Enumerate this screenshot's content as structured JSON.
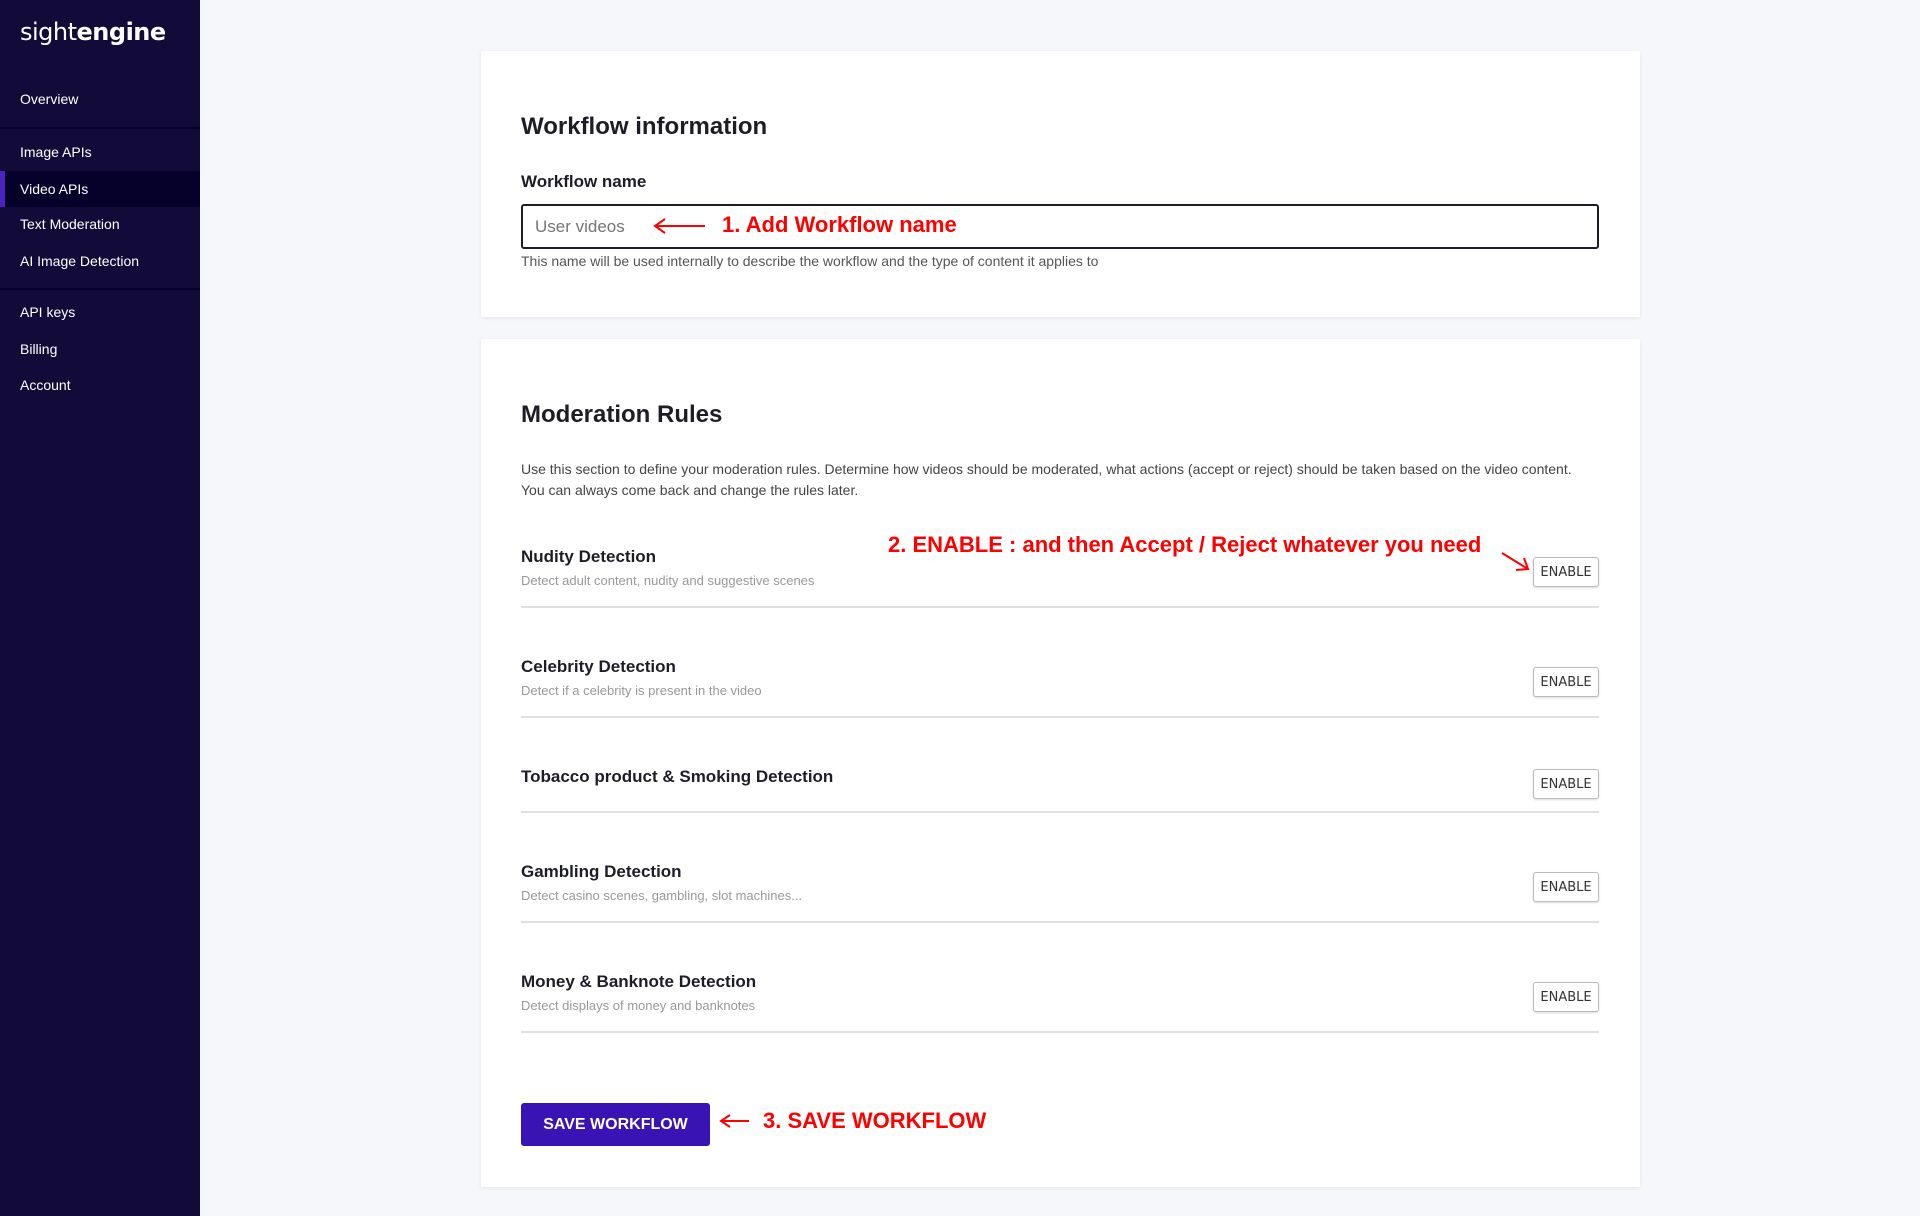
{
  "brand": {
    "light": "sight",
    "bold": "engine"
  },
  "sidebar": {
    "items": [
      {
        "label": "Overview"
      },
      {
        "label": "Image APIs"
      },
      {
        "label": "Video APIs",
        "active": true
      },
      {
        "label": "Text Moderation"
      },
      {
        "label": "AI Image Detection"
      },
      {
        "label": "API keys"
      },
      {
        "label": "Billing"
      },
      {
        "label": "Account"
      }
    ]
  },
  "workflow": {
    "title": "Workflow information",
    "name_label": "Workflow name",
    "name_placeholder": "User videos",
    "name_value": "",
    "help": "This name will be used internally to describe the workflow and the type of content it applies to"
  },
  "rules": {
    "title": "Moderation Rules",
    "desc1": "Use this section to define your moderation rules. Determine how videos should be moderated, what actions (accept or reject) should be taken based on the video content.",
    "desc2": "You can always come back and change the rules later.",
    "items": [
      {
        "title": "Nudity Detection",
        "subtitle": "Detect adult content, nudity and suggestive scenes",
        "button": "ENABLE"
      },
      {
        "title": "Celebrity Detection",
        "subtitle": "Detect if a celebrity is present in the video",
        "button": "ENABLE"
      },
      {
        "title": "Tobacco product & Smoking Detection",
        "subtitle": "",
        "button": "ENABLE"
      },
      {
        "title": "Gambling Detection",
        "subtitle": "Detect casino scenes, gambling, slot machines...",
        "button": "ENABLE"
      },
      {
        "title": "Money & Banknote Detection",
        "subtitle": "Detect displays of money and banknotes",
        "button": "ENABLE"
      }
    ]
  },
  "save_label": "SAVE WORKFLOW",
  "annotations": {
    "a1": "1.  Add Workflow name",
    "a2": "2. ENABLE : and then Accept / Reject whatever you need",
    "a3": "3. SAVE WORKFLOW"
  },
  "colors": {
    "sidebar": "#120b3a",
    "accent": "#4b22c0",
    "save": "#3a13b5",
    "annotation": "#ff0000"
  }
}
